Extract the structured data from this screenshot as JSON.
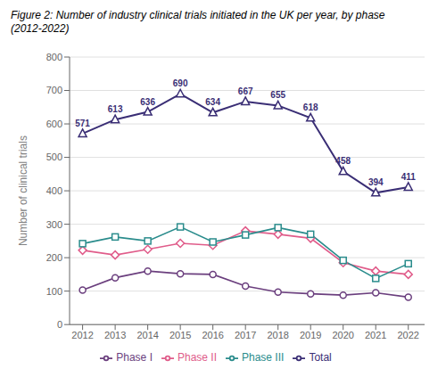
{
  "chart_data": {
    "type": "line",
    "title": "Figure 2: Number of industry clinical trials initiated in the UK per year, by phase",
    "subtitle": "(2012-2022)",
    "y_label": "Number of clinical trials",
    "x": [
      2012,
      2013,
      2014,
      2015,
      2016,
      2017,
      2018,
      2019,
      2020,
      2021,
      2022
    ],
    "series": [
      {
        "name": "Phase I",
        "color": "#6b3f7e",
        "marker": "circle",
        "values": [
          103,
          140,
          160,
          152,
          150,
          115,
          97,
          92,
          88,
          95,
          82
        ]
      },
      {
        "name": "Phase II",
        "color": "#e05c8a",
        "marker": "diamond",
        "values": [
          222,
          208,
          225,
          243,
          237,
          280,
          270,
          258,
          185,
          160,
          150
        ]
      },
      {
        "name": "Phase III",
        "color": "#2a8c8c",
        "marker": "square",
        "values": [
          242,
          262,
          250,
          292,
          247,
          268,
          290,
          270,
          192,
          138,
          182
        ]
      },
      {
        "name": "Total",
        "color": "#3a2e75",
        "marker": "triangle",
        "data_labels": true,
        "values": [
          571,
          613,
          636,
          690,
          634,
          667,
          655,
          618,
          458,
          394,
          411
        ]
      }
    ],
    "xlim": [
      2011.6,
      2022.5
    ],
    "xticks": [
      2012,
      2013,
      2014,
      2015,
      2016,
      2017,
      2018,
      2019,
      2020,
      2021,
      2022
    ],
    "ylim": [
      0,
      800
    ],
    "yticks": [
      0,
      100,
      200,
      300,
      400,
      500,
      600,
      700,
      800
    ],
    "grid": "y",
    "legend": "bottom"
  }
}
